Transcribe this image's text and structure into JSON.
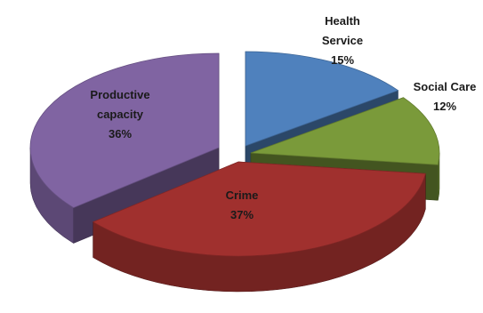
{
  "chart_data": {
    "type": "pie",
    "style": "3d-exploded",
    "slices": [
      {
        "label": "Health Service",
        "label_lines": [
          "Health",
          "Service"
        ],
        "value": 15,
        "value_label": "15%",
        "color": "#4f81bd"
      },
      {
        "label": "Social Care",
        "label_lines": [
          "Social Care"
        ],
        "value": 12,
        "value_label": "12%",
        "color": "#7a9a3a"
      },
      {
        "label": "Crime",
        "label_lines": [
          "Crime"
        ],
        "value": 37,
        "value_label": "37%",
        "color": "#a0302e"
      },
      {
        "label": "Productive capacity",
        "label_lines": [
          "Productive",
          "capacity"
        ],
        "value": 36,
        "value_label": "36%",
        "color": "#8064a2"
      }
    ]
  }
}
